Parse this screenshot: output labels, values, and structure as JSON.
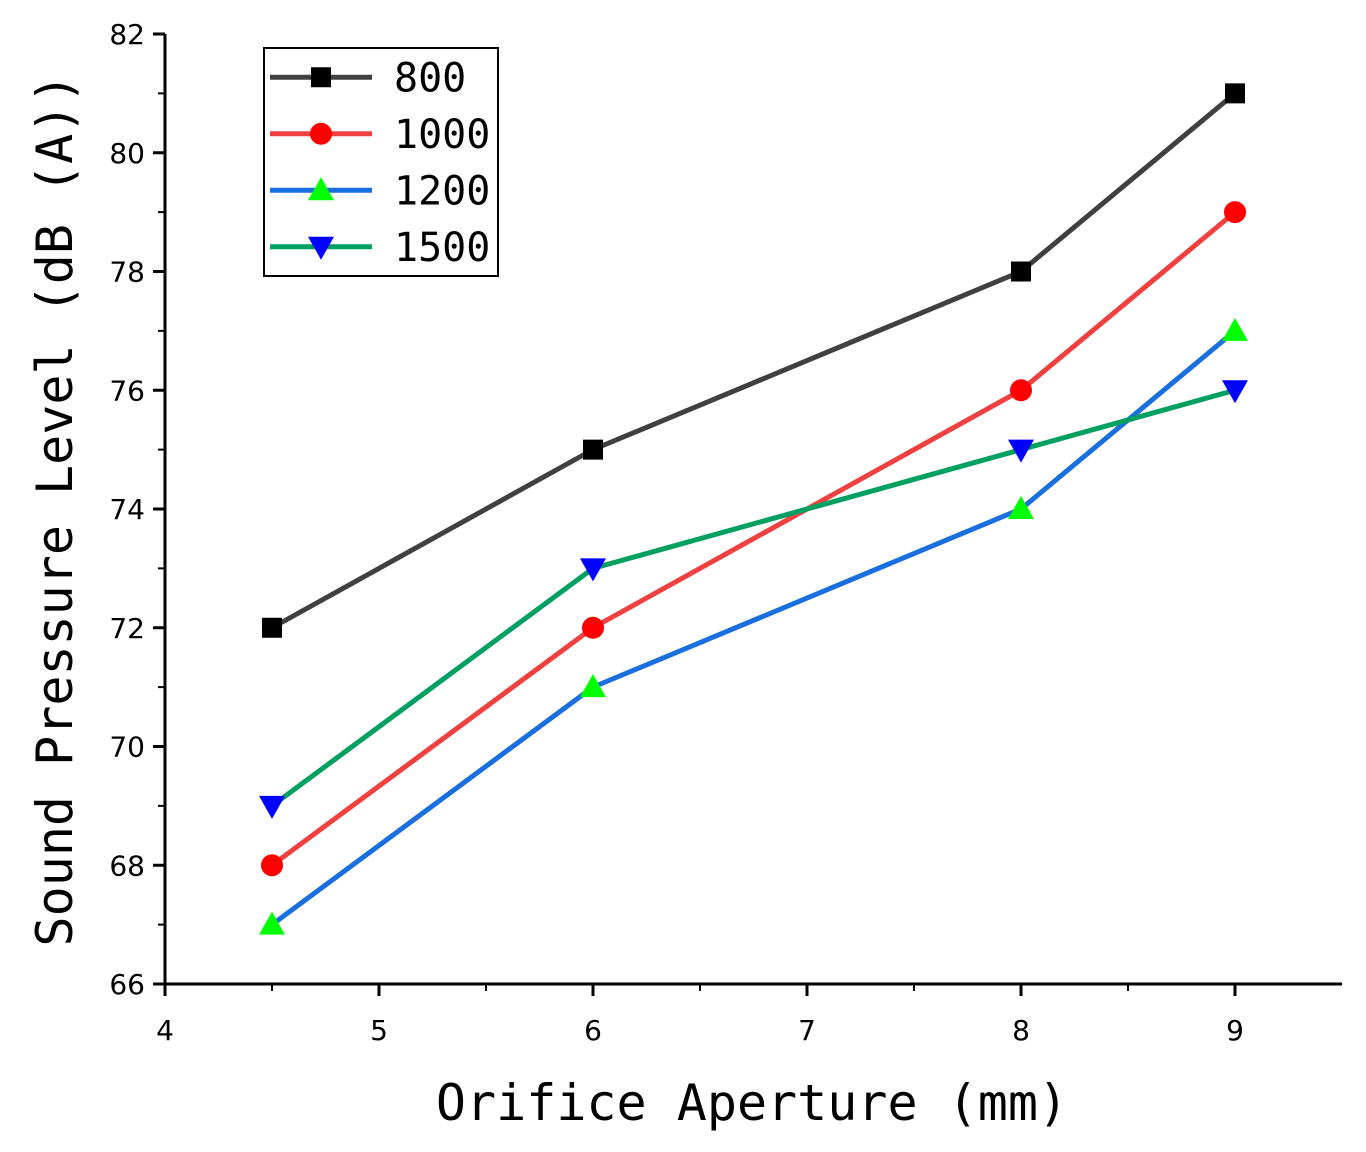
{
  "chart_data": {
    "type": "line",
    "title": "",
    "xlabel": "Orifice Aperture (mm)",
    "ylabel": "Sound Pressure Level (dB (A))",
    "xlim": [
      4,
      9.5
    ],
    "ylim": [
      66,
      82
    ],
    "x_ticks": [
      4,
      5,
      6,
      7,
      8,
      9
    ],
    "y_ticks": [
      66,
      68,
      70,
      72,
      74,
      76,
      78,
      80,
      82
    ],
    "grid": false,
    "legend_position": "top-left",
    "x": [
      4.5,
      6,
      8,
      9
    ],
    "series": [
      {
        "name": "800",
        "values": [
          72,
          75,
          78,
          81
        ],
        "line_color": "#404040",
        "marker": "square",
        "marker_color": "#000000"
      },
      {
        "name": "1000",
        "values": [
          68,
          72,
          76,
          79
        ],
        "line_color": "#f04040",
        "marker": "circle",
        "marker_color": "#ff0000"
      },
      {
        "name": "1200",
        "values": [
          67,
          71,
          74,
          77
        ],
        "line_color": "#1a6fe0",
        "marker": "triangle-up",
        "marker_color": "#00ff00"
      },
      {
        "name": "1500",
        "values": [
          69,
          73,
          75,
          76
        ],
        "line_color": "#00a060",
        "marker": "triangle-down",
        "marker_color": "#0000ff"
      }
    ]
  }
}
